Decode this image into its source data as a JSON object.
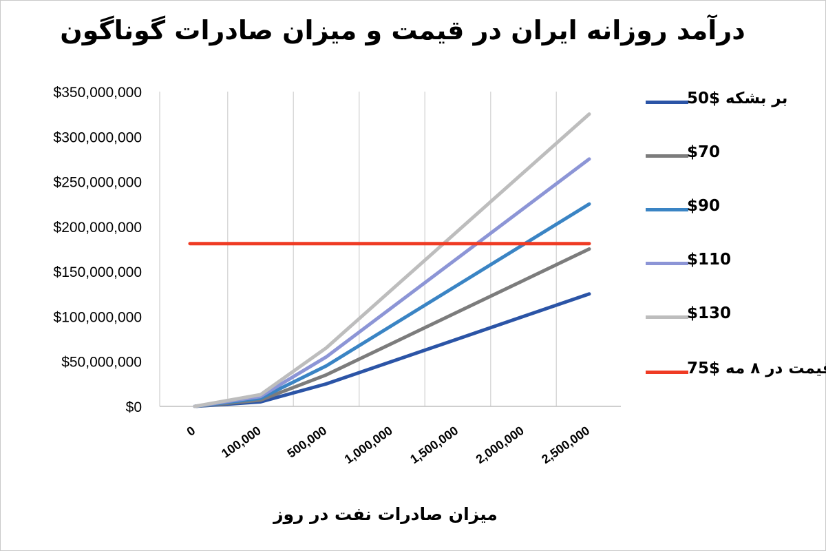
{
  "chart_data": {
    "type": "line",
    "title": "درآمد روزانه ایران در قیمت و میزان صادرات گوناگون",
    "xlabel": "میزان صادرات نفت در روز",
    "ylabel": "",
    "categories": [
      "0",
      "100,000",
      "500,000",
      "1,000,000",
      "1,500,000",
      "2,000,000",
      "2,500,000"
    ],
    "x": [
      0,
      100000,
      500000,
      1000000,
      1500000,
      2000000,
      2500000
    ],
    "ylim": [
      0,
      350000000
    ],
    "yticks": [
      "$0",
      "$50,000,000",
      "$100,000,000",
      "$150,000,000",
      "$200,000,000",
      "$250,000,000",
      "$300,000,000",
      "$350,000,000"
    ],
    "grid": "vertical",
    "legend_position": "right",
    "series": [
      {
        "name": "بر بشکه $50",
        "color": "#2b54a6",
        "values": [
          0,
          5000000,
          25000000,
          50000000,
          75000000,
          100000000,
          125000000
        ]
      },
      {
        "name": "$70",
        "color": "#7c7c7c",
        "values": [
          0,
          7000000,
          35000000,
          70000000,
          105000000,
          140000000,
          175000000
        ]
      },
      {
        "name": "$90",
        "color": "#3a84c4",
        "values": [
          0,
          9000000,
          45000000,
          90000000,
          135000000,
          180000000,
          225000000
        ]
      },
      {
        "name": "$110",
        "color": "#8c95d6",
        "values": [
          0,
          11000000,
          55000000,
          110000000,
          165000000,
          220000000,
          275000000
        ]
      },
      {
        "name": "$130",
        "color": "#bdbdbd",
        "values": [
          0,
          13000000,
          65000000,
          130000000,
          195000000,
          260000000,
          325000000
        ]
      },
      {
        "name": "قیمت در ۸ مه $75",
        "color": "#ef3b24",
        "values": [
          181000000,
          181000000,
          181000000,
          181000000,
          181000000,
          181000000,
          181000000
        ]
      }
    ]
  }
}
